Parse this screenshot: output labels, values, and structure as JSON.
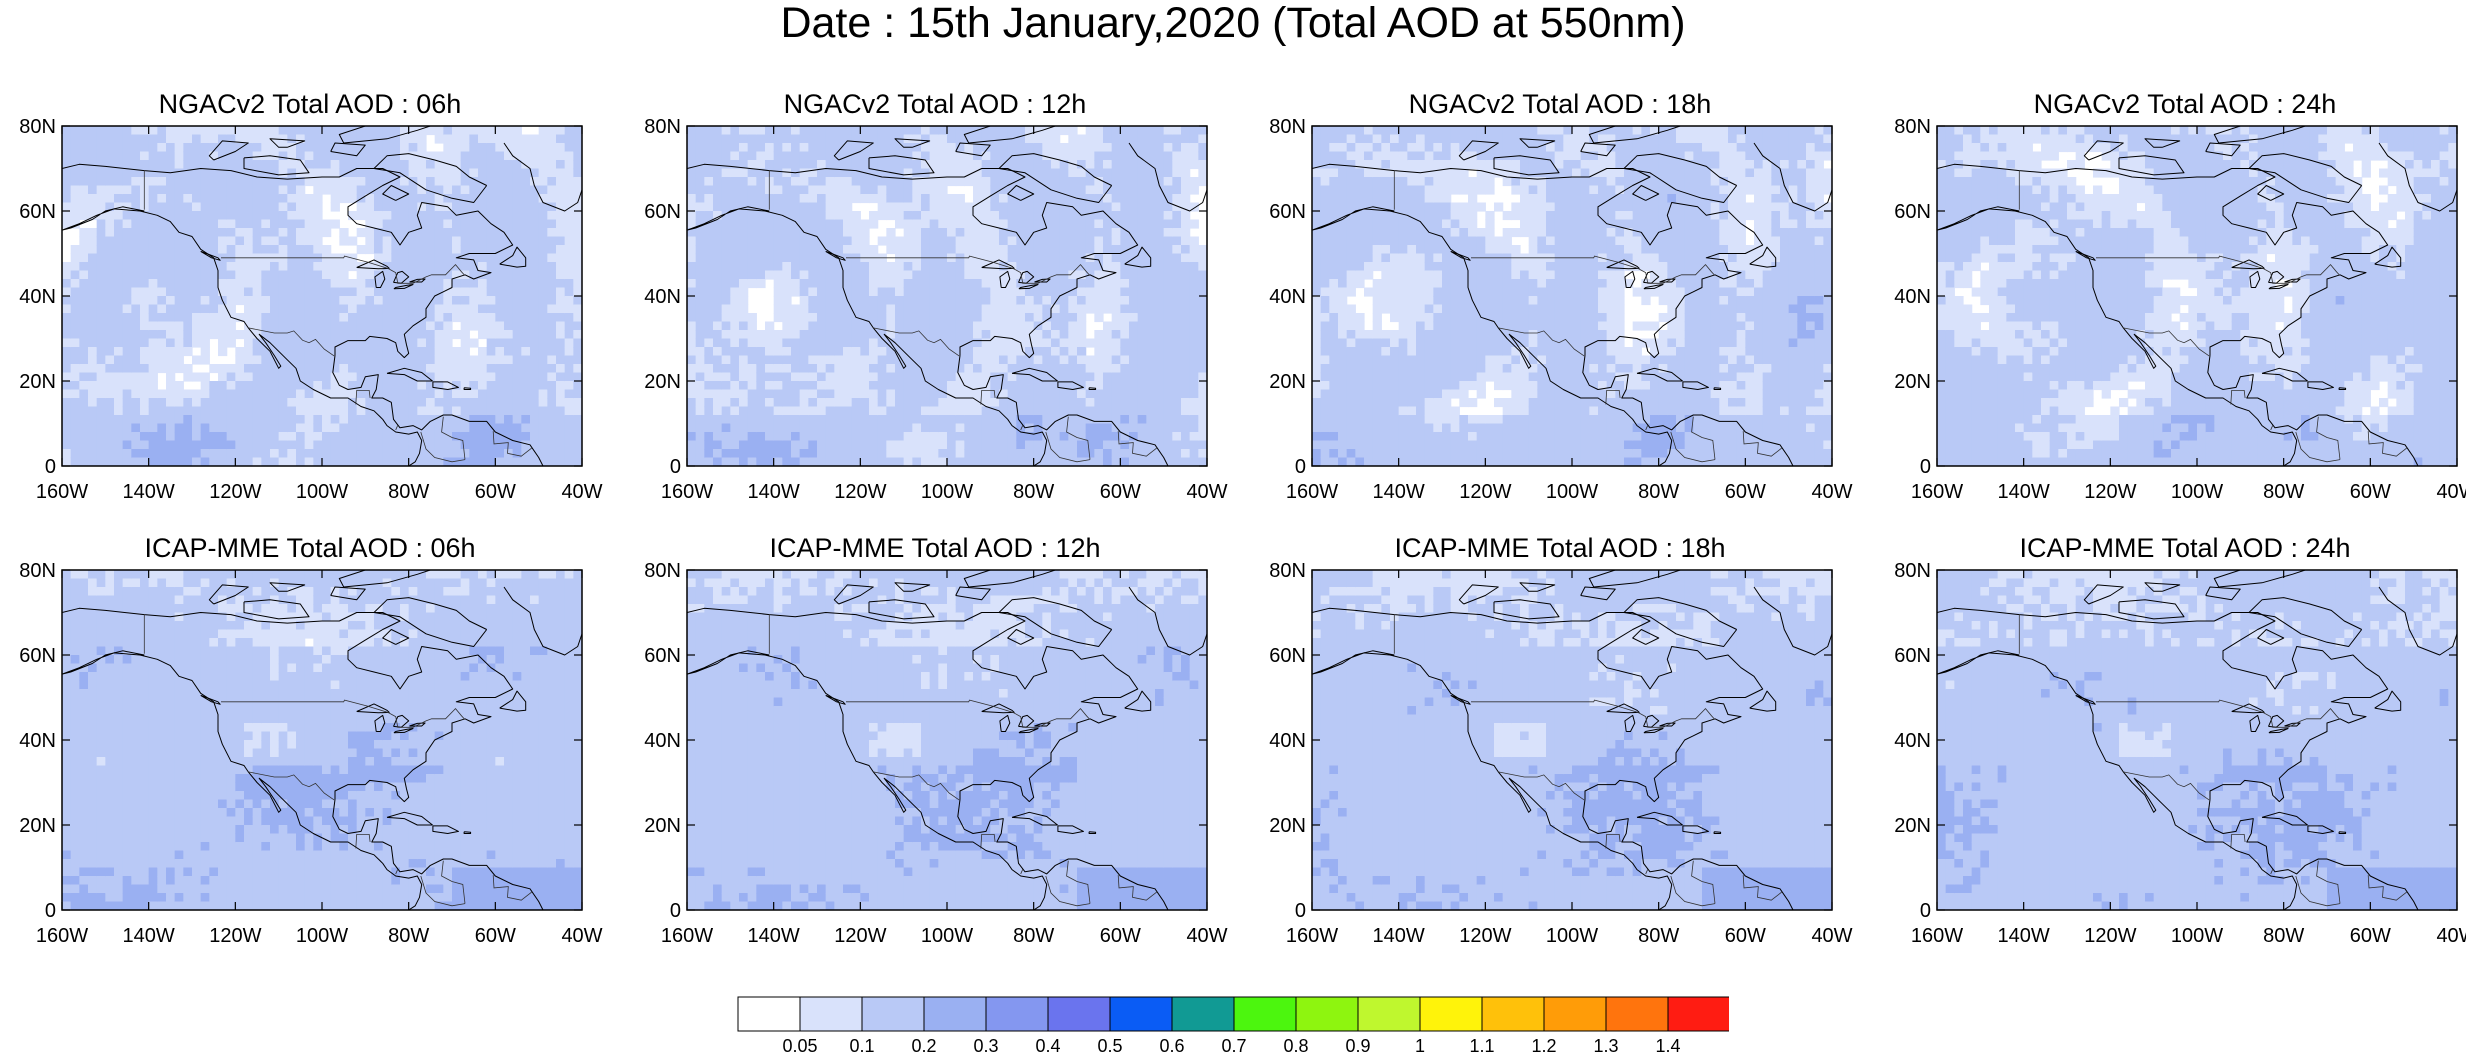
{
  "title": "Date : 15th January,2020 (Total AOD at 550nm)",
  "axes": {
    "lat_labels": [
      "80N",
      "60N",
      "40N",
      "20N",
      "0"
    ],
    "lon_labels": [
      "160W",
      "140W",
      "120W",
      "100W",
      "80W",
      "60W",
      "40W"
    ],
    "lat_range": [
      0,
      80
    ],
    "lon_range": [
      -160,
      -40
    ]
  },
  "panels": [
    {
      "title": "NGACv2 Total AOD : 06h",
      "model": "ngac",
      "hour": 6
    },
    {
      "title": "NGACv2 Total AOD : 12h",
      "model": "ngac",
      "hour": 12
    },
    {
      "title": "NGACv2 Total AOD : 18h",
      "model": "ngac",
      "hour": 18
    },
    {
      "title": "NGACv2 Total AOD : 24h",
      "model": "ngac",
      "hour": 24
    },
    {
      "title": "ICAP-MME Total AOD : 06h",
      "model": "icap",
      "hour": 6
    },
    {
      "title": "ICAP-MME Total AOD : 12h",
      "model": "icap",
      "hour": 12
    },
    {
      "title": "ICAP-MME Total AOD : 18h",
      "model": "icap",
      "hour": 18
    },
    {
      "title": "ICAP-MME Total AOD : 24h",
      "model": "icap",
      "hour": 24
    }
  ],
  "colorbar": {
    "labels": [
      "0.05",
      "0.1",
      "0.2",
      "0.3",
      "0.4",
      "0.5",
      "0.6",
      "0.7",
      "0.8",
      "0.9",
      "1",
      "1.1",
      "1.2",
      "1.3",
      "1.4"
    ],
    "colors": [
      "#ffffff",
      "#d9e2fb",
      "#b9c9f6",
      "#9ab0f2",
      "#8497f0",
      "#6a74ee",
      "#0a5cf5",
      "#119a94",
      "#4cf60e",
      "#8ef50f",
      "#bff72e",
      "#fff30a",
      "#ffc10a",
      "#ff9c08",
      "#ff740d",
      "#ff1c12"
    ]
  }
}
